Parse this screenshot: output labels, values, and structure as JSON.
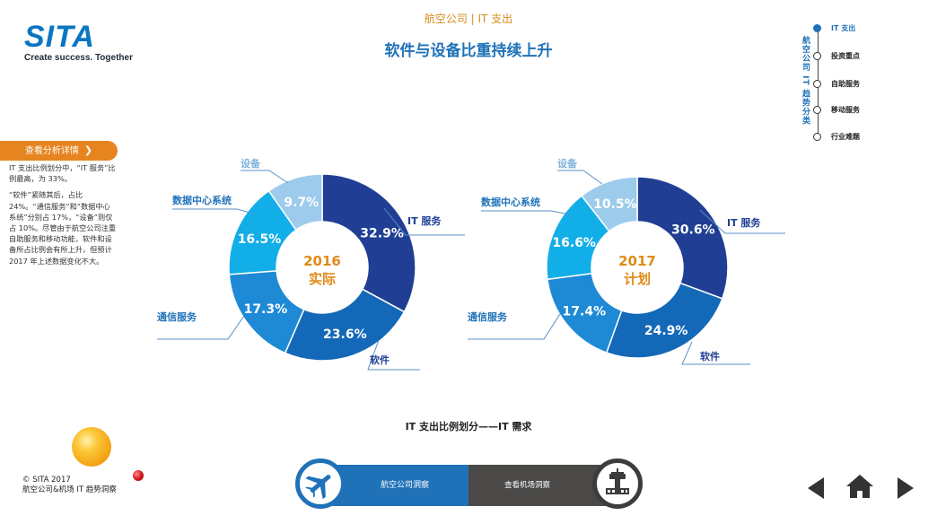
{
  "logo": {
    "word": "SITA",
    "tagline": "Create success. Together"
  },
  "header": {
    "section": "航空公司 | IT 支出",
    "title": "软件与设备比重持续上升"
  },
  "side_nav": {
    "vertical_title": "航空公司 IT 趋势分类",
    "items": [
      {
        "label": "IT 支出",
        "active": true
      },
      {
        "label": "投资重点",
        "active": false
      },
      {
        "label": "自助服务",
        "active": false
      },
      {
        "label": "移动服务",
        "active": false
      },
      {
        "label": "行业难题",
        "active": false
      }
    ]
  },
  "left_panel": {
    "button_label": "查看分析详情",
    "paragraphs": [
      "IT 支出比例划分中，“IT 服务”比例最高，为 33%。",
      "“软件”紧随其后，占比 24%。“通信服务”和“数据中心系统”分别占 17%，“设备”则仅占 10%。尽管由于航空公司注重自助服务和移动功能，软件和设备所占比例会有所上升，但预计 2017 年上述数据变化不大。"
    ]
  },
  "chart_data": [
    {
      "type": "pie",
      "center_label": [
        "2016",
        "实际"
      ],
      "slices": [
        {
          "label": "IT 服务",
          "value": 32.9,
          "color": "#203f94"
        },
        {
          "label": "软件",
          "value": 23.6,
          "color": "#1468b8"
        },
        {
          "label": "通信服务",
          "value": 17.3,
          "color": "#1e8ad6"
        },
        {
          "label": "数据中心系统",
          "value": 16.5,
          "color": "#12aee8"
        },
        {
          "label": "设备",
          "value": 9.7,
          "color": "#9ccbec"
        }
      ],
      "value_labels": [
        "32.9%",
        "23.6%",
        "17.3%",
        "16.5%",
        "9.7%"
      ]
    },
    {
      "type": "pie",
      "center_label": [
        "2017",
        "计划"
      ],
      "slices": [
        {
          "label": "IT 服务",
          "value": 30.6,
          "color": "#203f94"
        },
        {
          "label": "软件",
          "value": 24.9,
          "color": "#1468b8"
        },
        {
          "label": "通信服务",
          "value": 17.4,
          "color": "#1e8ad6"
        },
        {
          "label": "数据中心系统",
          "value": 16.6,
          "color": "#12aee8"
        },
        {
          "label": "设备",
          "value": 10.5,
          "color": "#9ccbec"
        }
      ],
      "value_labels": [
        "30.6%",
        "24.9%",
        "17.4%",
        "16.6%",
        "10.5%"
      ]
    }
  ],
  "chart_caption": "IT 支出比例划分——IT 需求",
  "center_text_color": "#e08a17",
  "footer": {
    "copyright_line1": "© SITA 2017",
    "copyright_line2": "航空公司&机场 IT 趋势洞察",
    "airline_tab": "航空公司洞察",
    "airport_tab": "查看机场洞察"
  }
}
